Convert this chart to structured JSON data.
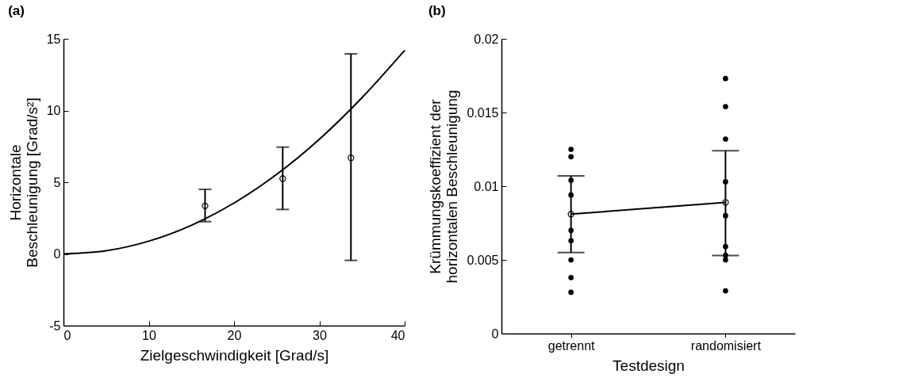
{
  "chart_data": [
    {
      "type": "scatter",
      "title": "(a)",
      "xlabel": "Zielgeschwindigkeit [Grad/s]",
      "ylabel": "Horizontale\nBeschleunigung [Grad/s²]",
      "xlim": [
        0,
        40
      ],
      "xticks": [
        0,
        10,
        20,
        30,
        40
      ],
      "ylim": [
        -5,
        15
      ],
      "yticks": [
        -5,
        0,
        5,
        10,
        15
      ],
      "marker": "circle",
      "series": [
        {
          "color": "#000000",
          "x": [
            16.6,
            25.7,
            33.7
          ],
          "values": [
            3.35,
            5.25,
            6.7
          ],
          "errors": [
            [
              2.25,
              4.5
            ],
            [
              3.1,
              7.45
            ],
            [
              -0.45,
              13.95
            ]
          ]
        },
        {
          "type": "line",
          "color": "#000000",
          "marker": "none",
          "x": [
            0,
            5,
            10,
            15,
            20,
            25,
            30,
            35,
            40
          ],
          "values": [
            0,
            0.22,
            0.89,
            2.0,
            3.55,
            5.55,
            8.0,
            10.9,
            14.2
          ]
        }
      ]
    },
    {
      "type": "line",
      "title": "(b)",
      "xlabel": "Testdesign",
      "ylabel": "Krümmungskoeffizient der\nhorizontalen Beschleunigung",
      "categories": [
        "getrennt",
        "randomisiert"
      ],
      "ylim": [
        0,
        0.02
      ],
      "yticks": [
        0,
        0.005,
        0.01,
        0.015,
        0.02
      ],
      "marker": "circle",
      "series": [
        {
          "color": "#000000",
          "values": [
            0.0081,
            0.0089
          ],
          "errors": [
            [
              0.0055,
              0.0107
            ],
            [
              0.0053,
              0.0124
            ]
          ]
        },
        {
          "type": "scatter",
          "color": "#000000",
          "x": [
            "getrennt",
            "getrennt",
            "getrennt",
            "getrennt",
            "getrennt",
            "getrennt",
            "getrennt",
            "getrennt",
            "getrennt",
            "randomisiert",
            "randomisiert",
            "randomisiert",
            "randomisiert",
            "randomisiert",
            "randomisiert",
            "randomisiert",
            "randomisiert",
            "randomisiert"
          ],
          "values": [
            0.0125,
            0.012,
            0.0104,
            0.0094,
            0.007,
            0.0063,
            0.005,
            0.0038,
            0.0028,
            0.0173,
            0.0154,
            0.0132,
            0.0103,
            0.008,
            0.0059,
            0.0053,
            0.005,
            0.0029
          ]
        }
      ]
    }
  ]
}
